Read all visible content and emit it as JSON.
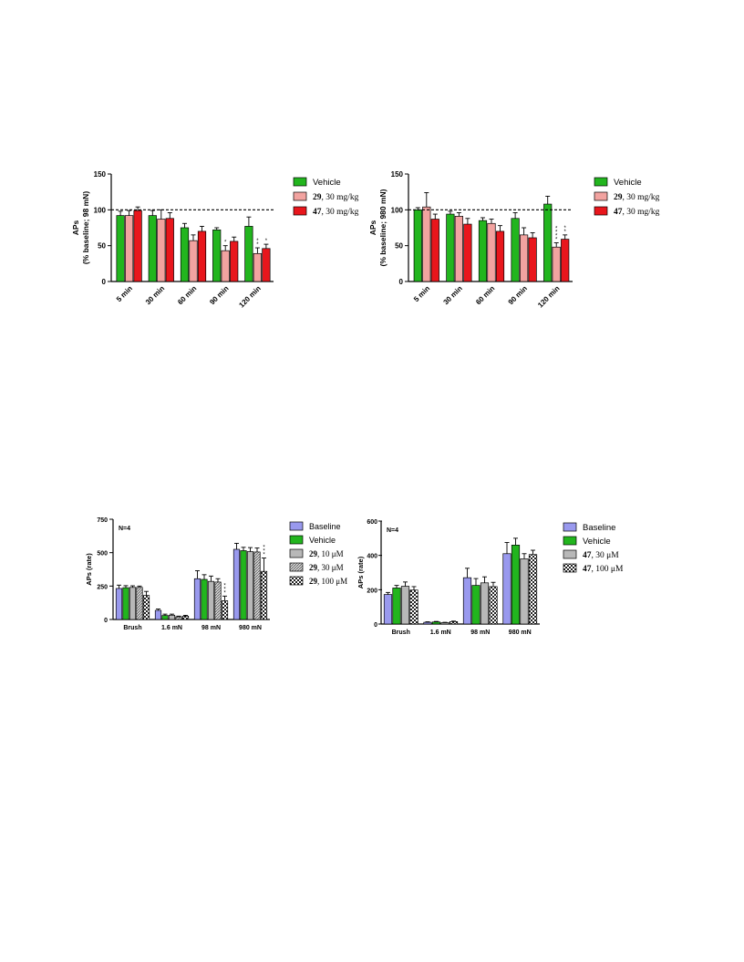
{
  "chart_data": [
    {
      "type": "bar",
      "ylabel": "APs",
      "ylabel2": "(% baseline; 98 mN)",
      "ylim": [
        0,
        150
      ],
      "yticks": [
        "0",
        "50",
        "100",
        "150"
      ],
      "categories": [
        "5 min",
        "30 min",
        "60 min",
        "90 min",
        "120 min"
      ],
      "reference_line": 100,
      "legend_position": "right",
      "series": [
        {
          "name": "Vehicle",
          "legend_bold": "",
          "legend_rest": "Vehicle",
          "color": "#22b51e",
          "values": [
            92,
            92,
            75,
            72,
            77
          ],
          "errors": [
            6,
            7,
            6,
            3,
            13
          ]
        },
        {
          "name": "29, 30 mg/kg",
          "legend_bold": "29",
          "legend_rest": ", 30 mg/kg",
          "color": "#f2a3a0",
          "values": [
            92,
            87,
            57,
            43,
            39
          ],
          "errors": [
            7,
            13,
            8,
            7,
            8
          ]
        },
        {
          "name": "47, 30 mg/kg",
          "legend_bold": "47",
          "legend_rest": ", 30 mg/kg",
          "color": "#e8161c",
          "values": [
            99,
            88,
            70,
            56,
            46
          ],
          "errors": [
            5,
            8,
            7,
            6,
            6
          ]
        }
      ],
      "annotations": [
        {
          "series": 1,
          "category": 3,
          "text": "*"
        },
        {
          "series": 1,
          "category": 4,
          "text": "**"
        },
        {
          "series": 2,
          "category": 4,
          "text": "*"
        }
      ]
    },
    {
      "type": "bar",
      "ylabel": "APs",
      "ylabel2": "(% baseline; 980 mN)",
      "ylim": [
        0,
        150
      ],
      "yticks": [
        "0",
        "50",
        "100",
        "150"
      ],
      "categories": [
        "5 min",
        "30 min",
        "60 min",
        "90 min",
        "120 min"
      ],
      "reference_line": 100,
      "legend_position": "right",
      "series": [
        {
          "name": "Vehicle",
          "legend_bold": "",
          "legend_rest": "Vehicle",
          "color": "#22b51e",
          "values": [
            100,
            94,
            85,
            88,
            108
          ],
          "errors": [
            3,
            4,
            4,
            8,
            11
          ]
        },
        {
          "name": "29, 30 mg/kg",
          "legend_bold": "29",
          "legend_rest": ", 30 mg/kg",
          "color": "#f2a3a0",
          "values": [
            104,
            91,
            81,
            65,
            48
          ],
          "errors": [
            20,
            5,
            6,
            10,
            6
          ]
        },
        {
          "name": "47, 30 mg/kg",
          "legend_bold": "47",
          "legend_rest": ", 30 mg/kg",
          "color": "#e8161c",
          "values": [
            87,
            80,
            70,
            61,
            59
          ],
          "errors": [
            7,
            8,
            8,
            7,
            6
          ]
        }
      ],
      "annotations": [
        {
          "series": 1,
          "category": 4,
          "text": "****"
        },
        {
          "series": 2,
          "category": 4,
          "text": "**"
        }
      ]
    },
    {
      "type": "bar",
      "ylabel": "APs (rate)",
      "note": "N=4",
      "ylim": [
        0,
        750
      ],
      "yticks": [
        "0",
        "250",
        "500",
        "750"
      ],
      "categories": [
        "Brush",
        "1.6 mN",
        "98 mN",
        "980 mN"
      ],
      "legend_position": "right",
      "series": [
        {
          "name": "Baseline",
          "legend_bold": "",
          "legend_rest": "Baseline",
          "color": "#9999ee",
          "pattern": "solid",
          "values": [
            232,
            68,
            305,
            525
          ],
          "errors": [
            25,
            10,
            60,
            45
          ]
        },
        {
          "name": "Vehicle",
          "legend_bold": "",
          "legend_rest": "Vehicle",
          "color": "#22b51e",
          "pattern": "solid",
          "values": [
            238,
            30,
            300,
            515
          ],
          "errors": [
            15,
            10,
            35,
            25
          ]
        },
        {
          "name": "29, 10 μM",
          "legend_bold": "29",
          "legend_rest": ", 10 μM",
          "color": "#b8b8b8",
          "pattern": "solid",
          "values": [
            240,
            32,
            285,
            508
          ],
          "errors": [
            12,
            8,
            40,
            30
          ]
        },
        {
          "name": "29, 30 μM",
          "legend_bold": "29",
          "legend_rest": ", 30 μM",
          "color": "#888888",
          "pattern": "hatch",
          "values": [
            240,
            20,
            280,
            505
          ],
          "errors": [
            10,
            5,
            25,
            30
          ]
        },
        {
          "name": "29, 100 μM",
          "legend_bold": "29",
          "legend_rest": ", 100 μM",
          "color": "#444444",
          "pattern": "check",
          "values": [
            180,
            25,
            140,
            360
          ],
          "errors": [
            30,
            6,
            35,
            100
          ]
        }
      ],
      "annotations": [
        {
          "series": 4,
          "category": 2,
          "text": "***"
        },
        {
          "series": 4,
          "category": 3,
          "text": "***"
        }
      ]
    },
    {
      "type": "bar",
      "ylabel": "APs (rate)",
      "note": "N=4",
      "ylim": [
        0,
        600
      ],
      "yticks": [
        "0",
        "200",
        "400",
        "600"
      ],
      "categories": [
        "Brush",
        "1.6 mN",
        "98 mN",
        "980 mN"
      ],
      "legend_position": "right",
      "series": [
        {
          "name": "Baseline",
          "legend_bold": "",
          "legend_rest": "Baseline",
          "color": "#9999ee",
          "pattern": "solid",
          "values": [
            172,
            10,
            270,
            410
          ],
          "errors": [
            12,
            3,
            55,
            65
          ]
        },
        {
          "name": "Vehicle",
          "legend_bold": "",
          "legend_rest": "Vehicle",
          "color": "#22b51e",
          "pattern": "solid",
          "values": [
            210,
            12,
            225,
            460
          ],
          "errors": [
            15,
            3,
            40,
            40
          ]
        },
        {
          "name": "47, 30 μM",
          "legend_bold": "47",
          "legend_rest": ", 30 μM",
          "color": "#b8b8b8",
          "pattern": "solid",
          "values": [
            220,
            8,
            240,
            380
          ],
          "errors": [
            25,
            2,
            35,
            30
          ]
        },
        {
          "name": "47, 100 μM",
          "legend_bold": "47",
          "legend_rest": ", 100 μM",
          "color": "#444444",
          "pattern": "check",
          "values": [
            198,
            14,
            218,
            405
          ],
          "errors": [
            20,
            3,
            25,
            25
          ]
        }
      ],
      "annotations": []
    }
  ]
}
